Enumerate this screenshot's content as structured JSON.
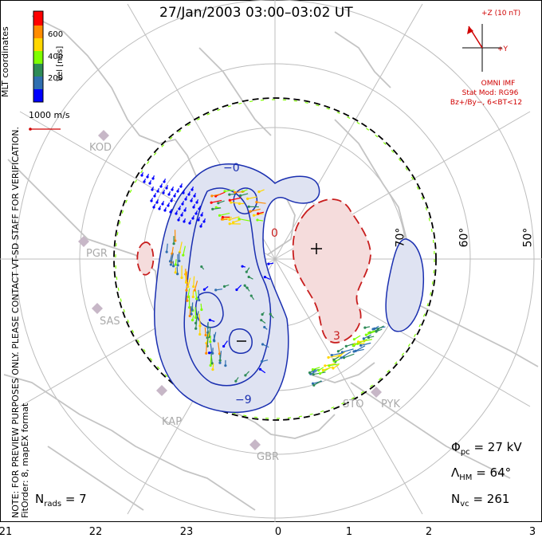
{
  "title": "27/Jan/2003 03:00–03:02 UT",
  "note_lines": [
    "NOTE: FOR PREVIEW PURPOSES ONLY. PLEASE CONTACT VT-SD STAFF FOR VERIFICATION.",
    "FitOrder: 8, mapEX format"
  ],
  "mlt_label": "MLT coordinates",
  "colorbar": {
    "title": "Vel [m/s]",
    "ticks": [
      "600",
      "400",
      "200"
    ],
    "colors": [
      "#0000ff",
      "#2f6fb0",
      "#2e8b57",
      "#7fff00",
      "#ffd700",
      "#ff8c00",
      "#ff0000"
    ]
  },
  "vector_scale": "1000 m/s",
  "imf": {
    "z_label": "+Z (10 nT)",
    "y_label": "+Y",
    "source": "OMNI IMF",
    "model": "Stat Mod: RG96",
    "condition": "Bz+/By−, 6<BT<12"
  },
  "stats": {
    "phi_pc": {
      "symbol": "Φ",
      "sub": "pc",
      "value": "= 27 kV"
    },
    "lambda_hm": {
      "symbol": "Λ",
      "sub": "HM",
      "value": "= 64°"
    },
    "n_vc": {
      "symbol": "N",
      "sub": "vc",
      "value": "= 261"
    },
    "n_rads": {
      "symbol": "N",
      "sub": "rads",
      "value": "= 7"
    }
  },
  "mlt_ticks": [
    "21",
    "22",
    "23",
    "0",
    "1",
    "2",
    "3"
  ],
  "lat_labels": [
    "70°",
    "60°",
    "50°"
  ],
  "radars": [
    "KOD",
    "PGR",
    "SAS",
    "KAP",
    "GBR",
    "STO",
    "PYK"
  ],
  "contour_labels": [
    "−9",
    "3",
    "−0",
    "0",
    "+",
    "−"
  ],
  "colors": {
    "negative_fill": "#dfe3f2",
    "negative_line": "#1a2fb0",
    "positive_fill": "#f5dcdc",
    "positive_line": "#c81e1e",
    "coast": "#c4c4c4",
    "grid": "#bdbdbd"
  }
}
